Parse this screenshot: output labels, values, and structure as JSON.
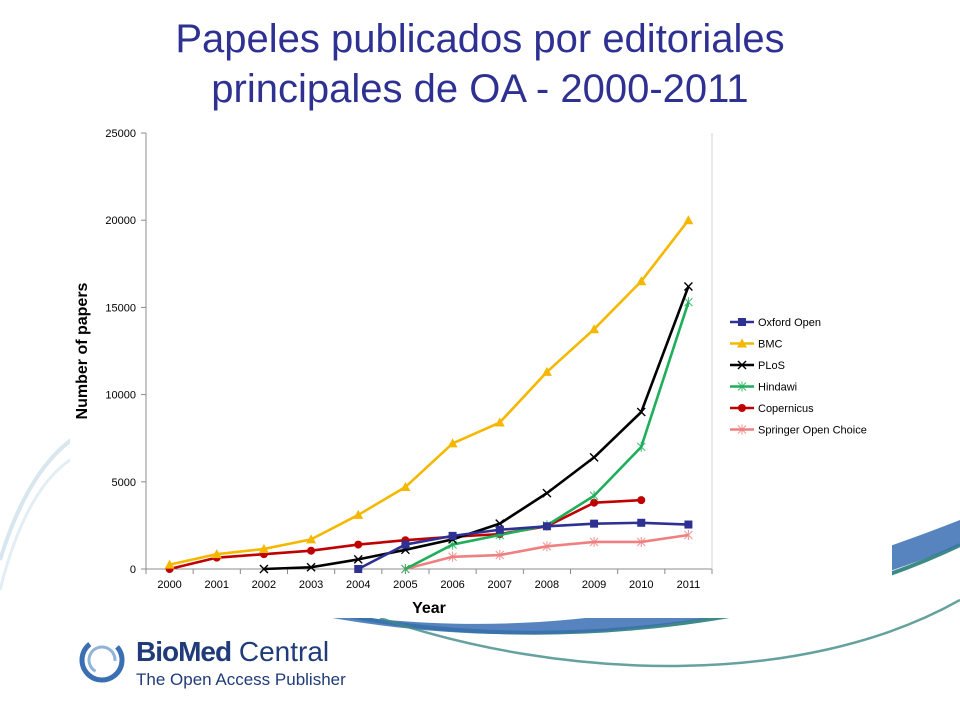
{
  "slide": {
    "title_line1": "Papeles publicados por editoriales",
    "title_line2": "principales de OA - 2000-2011"
  },
  "logo": {
    "bio": "Bio",
    "med": "Med",
    "central": " Central",
    "tagline": "The Open Access Publisher"
  },
  "colors": {
    "title": "#2e3192",
    "logo_blue": "#1f3b7a",
    "swoosh_blue": "#3a6fb3",
    "swoosh_teal": "#3e8a86"
  },
  "chart_data": {
    "type": "line",
    "title": "",
    "xlabel": "Year",
    "ylabel": "Number of papers",
    "x": [
      "2000",
      "2001",
      "2002",
      "2003",
      "2004",
      "2005",
      "2006",
      "2007",
      "2008",
      "2009",
      "2010",
      "2011"
    ],
    "ylim": [
      0,
      25000
    ],
    "yticks": [
      0,
      5000,
      10000,
      15000,
      20000,
      25000
    ],
    "ytick_labels": [
      "0",
      "5000",
      "10000",
      "15000",
      "20000",
      "25000"
    ],
    "grid": false,
    "legend_position": "right",
    "series": [
      {
        "name": "Oxford Open",
        "color": "#2e3192",
        "marker": "square",
        "values": [
          null,
          null,
          null,
          null,
          0,
          1400,
          1900,
          2250,
          2450,
          2600,
          2650,
          2550
        ]
      },
      {
        "name": "BMC",
        "color": "#f5b800",
        "marker": "triangle",
        "values": [
          250,
          850,
          1150,
          1700,
          3100,
          4700,
          7200,
          8400,
          11300,
          13750,
          16500,
          20000
        ]
      },
      {
        "name": "PLoS",
        "color": "#000000",
        "marker": "x",
        "values": [
          null,
          null,
          0,
          100,
          550,
          1100,
          1700,
          2600,
          4350,
          6400,
          9000,
          16200
        ]
      },
      {
        "name": "Hindawi",
        "color": "#1fae5a",
        "marker": "star",
        "values": [
          null,
          null,
          null,
          null,
          null,
          0,
          1400,
          1950,
          2500,
          4200,
          7000,
          15300
        ]
      },
      {
        "name": "Copernicus",
        "color": "#c00000",
        "marker": "circle",
        "values": [
          0,
          650,
          850,
          1050,
          1400,
          1650,
          1850,
          2000,
          2450,
          3800,
          3950,
          null
        ]
      },
      {
        "name": "Springer Open Choice",
        "color": "#f08080",
        "marker": "star",
        "values": [
          null,
          null,
          null,
          null,
          null,
          0,
          700,
          800,
          1300,
          1550,
          1550,
          1950
        ]
      }
    ]
  }
}
